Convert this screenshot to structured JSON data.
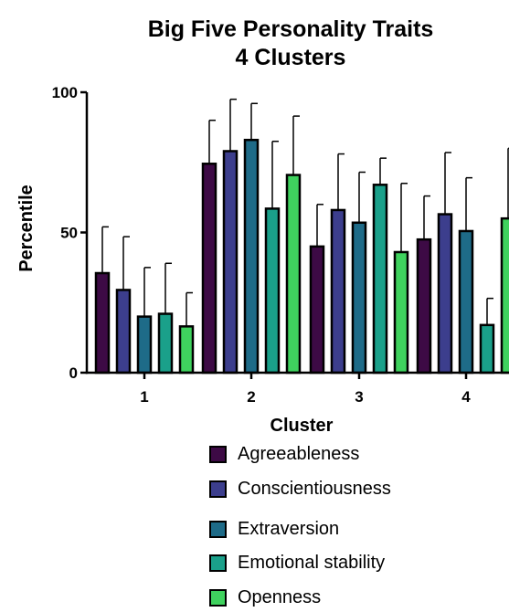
{
  "chart_data": {
    "type": "bar",
    "title": [
      "Big Five Personality Traits",
      "4 Clusters"
    ],
    "xlabel": "Cluster",
    "ylabel": "Percentile",
    "ylim": [
      0,
      100
    ],
    "yticks": [
      0,
      50,
      100
    ],
    "categories": [
      "1",
      "2",
      "3",
      "4"
    ],
    "legend_position": "bottom",
    "series": [
      {
        "name": "Agreeableness",
        "color": "#3d0a45",
        "values": [
          35.5,
          74.5,
          45,
          47.5
        ],
        "error": [
          16.5,
          15.5,
          15,
          15.5
        ]
      },
      {
        "name": "Conscientiousness",
        "color": "#3c3e8d",
        "values": [
          29.5,
          79,
          58,
          56.5
        ],
        "error": [
          19,
          18.5,
          20,
          22
        ]
      },
      {
        "name": "Extraversion",
        "color": "#1e6b88",
        "values": [
          20,
          83,
          53.5,
          50.5
        ],
        "error": [
          17.5,
          13,
          18,
          19
        ]
      },
      {
        "name": "Emotional stability",
        "color": "#1aa08a",
        "values": [
          21,
          58.5,
          67,
          17
        ],
        "error": [
          18,
          24,
          9.5,
          9.5
        ]
      },
      {
        "name": "Openness",
        "color": "#3fd25e",
        "values": [
          16.5,
          70.5,
          43,
          55
        ],
        "error": [
          12,
          21,
          24.5,
          25
        ]
      }
    ]
  }
}
